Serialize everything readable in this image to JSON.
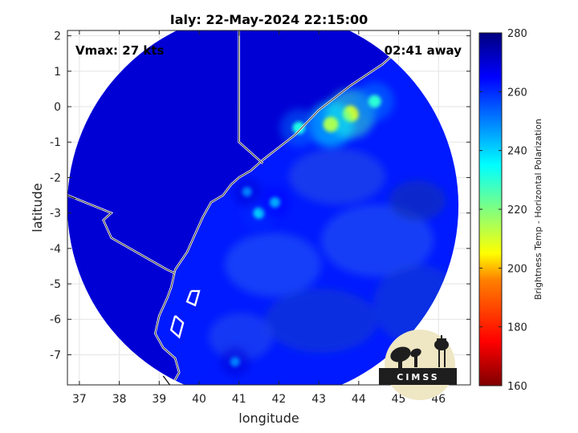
{
  "chart_data": {
    "type": "heatmap",
    "title": "Ialy: 22-May-2024 22:15:00",
    "xlabel": "longitude",
    "ylabel": "latitude",
    "xlim": [
      36.7,
      46.8
    ],
    "ylim": [
      -7.85,
      2.15
    ],
    "x_ticks": [
      37,
      38,
      39,
      40,
      41,
      42,
      43,
      44,
      45,
      46
    ],
    "y_ticks": [
      2,
      1,
      0,
      -1,
      -2,
      -3,
      -4,
      -5,
      -6,
      -7
    ],
    "grid": true,
    "annotations": {
      "vmax": "Vmax: 27 kts",
      "distance": "02:41 away"
    },
    "colorbar": {
      "label": "Brightness Temp - Horizontal Polarization",
      "range": [
        160,
        280
      ],
      "ticks": [
        280,
        260,
        240,
        220,
        200,
        180,
        160
      ],
      "colormap": [
        "#7f0000",
        "#ff0000",
        "#ff8000",
        "#ffff00",
        "#80ff80",
        "#00ffff",
        "#0080ff",
        "#0000ff",
        "#00007f"
      ]
    },
    "field": {
      "center": [
        41.6,
        -2.8
      ],
      "radius_deg": 4.9,
      "background_value": 262,
      "land_value": 270,
      "hotspots": [
        {
          "lon": 43.8,
          "lat": -0.2,
          "value": 208
        },
        {
          "lon": 43.3,
          "lat": -0.5,
          "value": 215
        },
        {
          "lon": 44.4,
          "lat": 0.15,
          "value": 230
        },
        {
          "lon": 42.5,
          "lat": -0.6,
          "value": 232
        },
        {
          "lon": 41.5,
          "lat": -3.0,
          "value": 240
        },
        {
          "lon": 41.9,
          "lat": -2.7,
          "value": 245
        },
        {
          "lon": 41.2,
          "lat": -2.4,
          "value": 250
        },
        {
          "lon": 40.9,
          "lat": -7.2,
          "value": 250
        }
      ]
    },
    "logo": "CIMSS"
  },
  "colors": {
    "deep_blue": "#06169e",
    "ocean_blue": "#1c3fdc",
    "coast": "#ffffff",
    "logo_bg": "#efe6c4",
    "logo_dark": "#1e1e1e"
  }
}
